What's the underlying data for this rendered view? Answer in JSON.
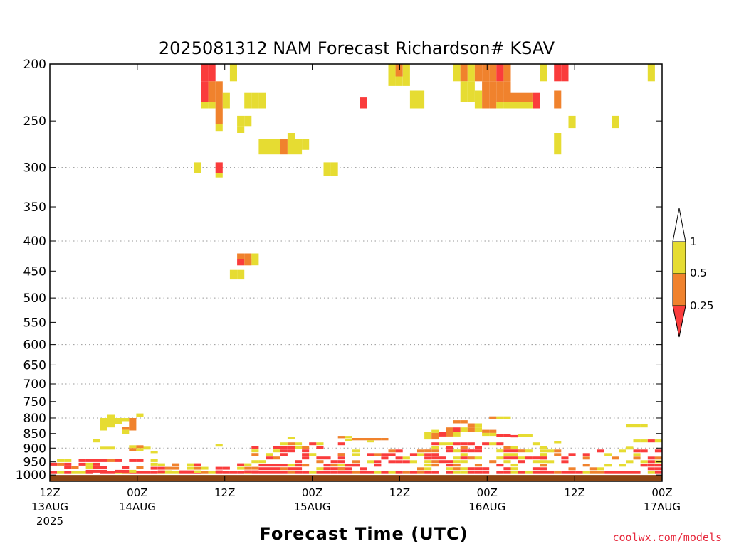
{
  "chart_data": {
    "type": "heatmap",
    "title": "2025081312 NAM Forecast Richardson# KSAV",
    "xlabel": "Forecast Time (UTC)",
    "ylabel": "",
    "y_axis": {
      "scale": "log-pressure",
      "range": [
        1025,
        200
      ],
      "ticks": [
        200,
        250,
        300,
        350,
        400,
        450,
        500,
        550,
        600,
        650,
        700,
        750,
        800,
        850,
        900,
        950,
        1000
      ],
      "gridlines": [
        300,
        400,
        500,
        600,
        700,
        800,
        900
      ]
    },
    "x_axis": {
      "range": [
        0,
        84
      ],
      "ticks": [
        {
          "hour": 0,
          "label": "12Z",
          "sub": "13AUG",
          "sub2": "2025"
        },
        {
          "hour": 12,
          "label": "00Z",
          "sub": "14AUG",
          "sub2": ""
        },
        {
          "hour": 24,
          "label": "12Z",
          "sub": "",
          "sub2": ""
        },
        {
          "hour": 36,
          "label": "00Z",
          "sub": "15AUG",
          "sub2": ""
        },
        {
          "hour": 48,
          "label": "12Z",
          "sub": "",
          "sub2": ""
        },
        {
          "hour": 60,
          "label": "00Z",
          "sub": "16AUG",
          "sub2": ""
        },
        {
          "hour": 72,
          "label": "12Z",
          "sub": "",
          "sub2": ""
        },
        {
          "hour": 84,
          "label": "00Z",
          "sub": "17AUG",
          "sub2": ""
        }
      ]
    },
    "legend": {
      "placement": "right",
      "entries": [
        {
          "label": "1",
          "color": "#ffffff"
        },
        {
          "label": "0.5",
          "color": "#e6dc32"
        },
        {
          "label": "0.25",
          "color": "#f0822d"
        },
        {
          "label": "",
          "color": "#fa3c3c"
        }
      ],
      "edges": [
        "1",
        "0.5",
        "0.25"
      ]
    },
    "colors": {
      "red": "#fa3c3c",
      "orange": "#f0822d",
      "yellow": "#e6dc32",
      "ground": "#8b4513"
    },
    "cell_width_hours": 1,
    "cells": [
      [
        21,
        200,
        214,
        "r"
      ],
      [
        22,
        200,
        214,
        "r"
      ],
      [
        25,
        200,
        214,
        "y"
      ],
      [
        47,
        200,
        210,
        "y"
      ],
      [
        48,
        200,
        210,
        "o"
      ],
      [
        49,
        200,
        210,
        "y"
      ],
      [
        47,
        210,
        218,
        "y"
      ],
      [
        48,
        210,
        218,
        "y"
      ],
      [
        49,
        210,
        218,
        "y"
      ],
      [
        56,
        200,
        214,
        "y"
      ],
      [
        57,
        200,
        214,
        "o"
      ],
      [
        58,
        200,
        214,
        "y"
      ],
      [
        59,
        200,
        214,
        "o"
      ],
      [
        60,
        200,
        214,
        "o"
      ],
      [
        61,
        200,
        214,
        "o"
      ],
      [
        62,
        200,
        214,
        "r"
      ],
      [
        63,
        200,
        214,
        "o"
      ],
      [
        68,
        200,
        214,
        "y"
      ],
      [
        70,
        200,
        214,
        "r"
      ],
      [
        71,
        200,
        214,
        "r"
      ],
      [
        83,
        200,
        214,
        "y"
      ],
      [
        21,
        214,
        232,
        "r"
      ],
      [
        22,
        214,
        232,
        "o"
      ],
      [
        23,
        214,
        232,
        "o"
      ],
      [
        21,
        232,
        238,
        "y"
      ],
      [
        22,
        232,
        238,
        "y"
      ],
      [
        23,
        232,
        238,
        "o"
      ],
      [
        24,
        224,
        238,
        "y"
      ],
      [
        27,
        224,
        238,
        "y"
      ],
      [
        28,
        224,
        238,
        "y"
      ],
      [
        29,
        224,
        238,
        "y"
      ],
      [
        43,
        228,
        238,
        "r"
      ],
      [
        50,
        222,
        238,
        "y"
      ],
      [
        51,
        222,
        238,
        "y"
      ],
      [
        57,
        214,
        232,
        "y"
      ],
      [
        58,
        214,
        232,
        "y"
      ],
      [
        59,
        222,
        238,
        "y"
      ],
      [
        60,
        214,
        232,
        "o"
      ],
      [
        61,
        214,
        232,
        "o"
      ],
      [
        62,
        214,
        232,
        "o"
      ],
      [
        63,
        214,
        232,
        "o"
      ],
      [
        64,
        224,
        232,
        "o"
      ],
      [
        65,
        224,
        232,
        "o"
      ],
      [
        66,
        224,
        232,
        "o"
      ],
      [
        67,
        224,
        238,
        "r"
      ],
      [
        60,
        232,
        238,
        "o"
      ],
      [
        61,
        232,
        238,
        "o"
      ],
      [
        62,
        232,
        238,
        "y"
      ],
      [
        63,
        232,
        238,
        "y"
      ],
      [
        64,
        232,
        238,
        "y"
      ],
      [
        65,
        232,
        238,
        "y"
      ],
      [
        66,
        232,
        238,
        "y"
      ],
      [
        70,
        222,
        238,
        "o"
      ],
      [
        23,
        238,
        253,
        "o"
      ],
      [
        26,
        245,
        255,
        "y"
      ],
      [
        27,
        245,
        255,
        "y"
      ],
      [
        23,
        253,
        260,
        "y"
      ],
      [
        26,
        255,
        262,
        "y"
      ],
      [
        72,
        245,
        257,
        "y"
      ],
      [
        78,
        245,
        257,
        "y"
      ],
      [
        29,
        268,
        285,
        "y"
      ],
      [
        30,
        268,
        285,
        "y"
      ],
      [
        31,
        268,
        285,
        "y"
      ],
      [
        32,
        268,
        285,
        "o"
      ],
      [
        33,
        268,
        285,
        "y"
      ],
      [
        34,
        268,
        285,
        "y"
      ],
      [
        35,
        268,
        280,
        "y"
      ],
      [
        33,
        262,
        268,
        "y"
      ],
      [
        70,
        262,
        285,
        "y"
      ],
      [
        20,
        294,
        307,
        "y"
      ],
      [
        23,
        294,
        307,
        "r"
      ],
      [
        23,
        307,
        312,
        "y"
      ],
      [
        38,
        294,
        310,
        "y"
      ],
      [
        39,
        294,
        310,
        "y"
      ],
      [
        26,
        420,
        430,
        "o"
      ],
      [
        27,
        420,
        430,
        "o"
      ],
      [
        28,
        420,
        440,
        "y"
      ],
      [
        26,
        430,
        440,
        "r"
      ],
      [
        27,
        430,
        440,
        "o"
      ],
      [
        25,
        448,
        465,
        "y"
      ],
      [
        26,
        448,
        465,
        "y"
      ],
      [
        8,
        790,
        800,
        "y"
      ],
      [
        7,
        800,
        818,
        "y"
      ],
      [
        8,
        800,
        818,
        "y"
      ],
      [
        9,
        800,
        818,
        "y"
      ],
      [
        10,
        800,
        810,
        "y"
      ],
      [
        11,
        800,
        812,
        "o"
      ],
      [
        12,
        786,
        796,
        "y"
      ],
      [
        11,
        812,
        825,
        "o"
      ],
      [
        7,
        818,
        840,
        "y"
      ],
      [
        8,
        818,
        830,
        "y"
      ],
      [
        10,
        828,
        838,
        "o"
      ],
      [
        11,
        825,
        840,
        "o"
      ],
      [
        10,
        838,
        852,
        "y"
      ],
      [
        6,
        868,
        880,
        "y"
      ],
      [
        56,
        807,
        817,
        "o"
      ],
      [
        57,
        807,
        817,
        "o"
      ],
      [
        58,
        817,
        830,
        "o"
      ],
      [
        59,
        817,
        830,
        "y"
      ],
      [
        55,
        830,
        845,
        "o"
      ],
      [
        56,
        830,
        845,
        "r"
      ],
      [
        57,
        830,
        845,
        "y"
      ],
      [
        58,
        830,
        845,
        "o"
      ],
      [
        59,
        830,
        845,
        "y"
      ],
      [
        53,
        838,
        848,
        "y"
      ],
      [
        52,
        845,
        870,
        "y"
      ],
      [
        53,
        848,
        870,
        "o"
      ],
      [
        54,
        845,
        860,
        "r"
      ],
      [
        55,
        845,
        860,
        "o"
      ],
      [
        56,
        845,
        860,
        "y"
      ],
      [
        60,
        838,
        848,
        "o"
      ],
      [
        61,
        838,
        848,
        "o"
      ],
      [
        60,
        848,
        858,
        "y"
      ],
      [
        61,
        848,
        858,
        "y"
      ],
      [
        62,
        852,
        860,
        "r"
      ],
      [
        63,
        852,
        860,
        "r"
      ],
      [
        64,
        855,
        863,
        "r"
      ],
      [
        65,
        852,
        860,
        "y"
      ],
      [
        66,
        852,
        860,
        "y"
      ],
      [
        61,
        795,
        803,
        "o"
      ],
      [
        62,
        795,
        803,
        "y"
      ],
      [
        63,
        795,
        803,
        "y"
      ],
      [
        80,
        820,
        830,
        "y"
      ],
      [
        81,
        820,
        830,
        "y"
      ],
      [
        82,
        820,
        830,
        "y"
      ],
      [
        33,
        860,
        868,
        "y"
      ],
      [
        40,
        858,
        866,
        "o"
      ],
      [
        41,
        858,
        866,
        "y"
      ],
      [
        42,
        865,
        873,
        "o"
      ],
      [
        43,
        865,
        873,
        "o"
      ],
      [
        44,
        865,
        873,
        "o"
      ],
      [
        45,
        865,
        873,
        "o"
      ],
      [
        46,
        865,
        873,
        "o"
      ],
      [
        41,
        868,
        876,
        "y"
      ],
      [
        44,
        873,
        880,
        "y"
      ],
      [
        70,
        875,
        883,
        "y"
      ],
      [
        81,
        870,
        880,
        "y"
      ],
      [
        82,
        870,
        880,
        "y"
      ],
      [
        83,
        870,
        880,
        "r"
      ],
      [
        84,
        870,
        880,
        "y"
      ],
      [
        80,
        895,
        905,
        "y"
      ],
      [
        23,
        885,
        895,
        "y"
      ],
      [
        7,
        895,
        905,
        "y"
      ],
      [
        8,
        895,
        905,
        "y"
      ],
      [
        11,
        890,
        900,
        "y"
      ],
      [
        12,
        890,
        900,
        "o"
      ],
      [
        11,
        900,
        910,
        "o"
      ],
      [
        12,
        900,
        910,
        "y"
      ],
      [
        13,
        895,
        905,
        "y"
      ],
      [
        14,
        910,
        918,
        "y"
      ]
    ],
    "bands": [
      {
        "hours": [
          0,
          84
        ],
        "p": [
          985,
          1000
        ],
        "pattern": "dense",
        "palette": [
          "r",
          "r",
          "r",
          "r",
          "o",
          "y"
        ]
      },
      {
        "hours": [
          0,
          14
        ],
        "p": [
          940,
          985
        ],
        "pattern": "medium",
        "palette": [
          "r",
          "r",
          "o",
          "r",
          "y"
        ]
      },
      {
        "hours": [
          14,
          28
        ],
        "p": [
          955,
          985
        ],
        "pattern": "medium",
        "palette": [
          "r",
          "o",
          "y",
          "r"
        ]
      },
      {
        "hours": [
          28,
          40
        ],
        "p": [
          880,
          985
        ],
        "pattern": "medium",
        "palette": [
          "r",
          "r",
          "o",
          "y",
          "r"
        ]
      },
      {
        "hours": [
          40,
          52
        ],
        "p": [
          905,
          985
        ],
        "pattern": "sparse",
        "palette": [
          "r",
          "r",
          "o",
          "y"
        ]
      },
      {
        "hours": [
          52,
          68
        ],
        "p": [
          880,
          985
        ],
        "pattern": "medium",
        "palette": [
          "r",
          "y",
          "o",
          "r",
          "y",
          "r"
        ]
      },
      {
        "hours": [
          68,
          84
        ],
        "p": [
          905,
          985
        ],
        "pattern": "sparse",
        "palette": [
          "r",
          "y",
          "r",
          "o"
        ]
      }
    ],
    "ground": {
      "p": [
        1000,
        1025
      ],
      "color": "#8b4513"
    }
  },
  "credit": "coolwx.com/models"
}
